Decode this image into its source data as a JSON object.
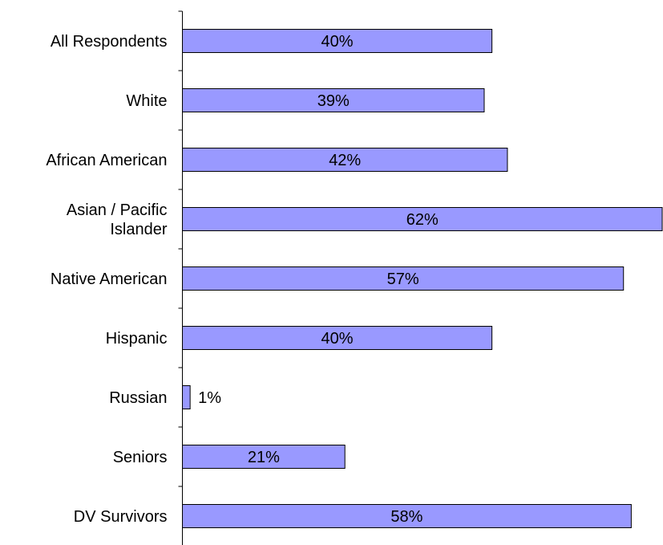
{
  "chart_data": {
    "type": "bar",
    "orientation": "horizontal",
    "categories": [
      "All Respondents",
      "White",
      "African American",
      "Asian / Pacific Islander",
      "Native American",
      "Hispanic",
      "Russian",
      "Seniors",
      "DV Survivors"
    ],
    "category_lines": [
      [
        "All Respondents"
      ],
      [
        "White"
      ],
      [
        "African American"
      ],
      [
        "Asian / Pacific",
        "Islander"
      ],
      [
        "Native American"
      ],
      [
        "Hispanic"
      ],
      [
        "Russian"
      ],
      [
        "Seniors"
      ],
      [
        "DV Survivors"
      ]
    ],
    "values": [
      40,
      39,
      42,
      62,
      57,
      40,
      1,
      21,
      58
    ],
    "data_labels": [
      "40%",
      "39%",
      "42%",
      "62%",
      "57%",
      "40%",
      "1%",
      "21%",
      "58%"
    ],
    "value_unit": "%",
    "xlim": [
      0,
      62
    ],
    "title": "",
    "xlabel": "",
    "ylabel": "",
    "grid": false,
    "legend": "none",
    "bar_color": "#9999ff",
    "bar_edge_color": "#000000"
  }
}
